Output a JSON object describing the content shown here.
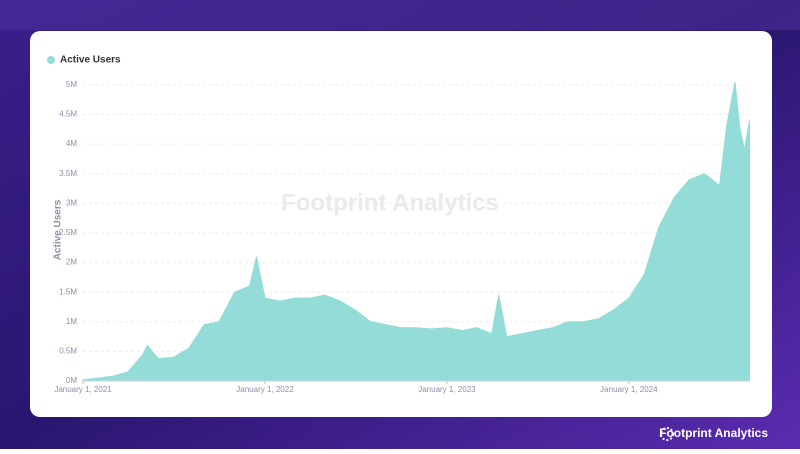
{
  "chart_data": {
    "type": "area",
    "watermark": "Footprint Analytics",
    "y_label": "Active Users",
    "x": [
      "2021-01-01",
      "2021-02-01",
      "2021-03-01",
      "2021-04-01",
      "2021-05-01",
      "2021-05-10",
      "2021-06-01",
      "2021-07-01",
      "2021-08-01",
      "2021-09-01",
      "2021-10-01",
      "2021-11-01",
      "2021-12-01",
      "2021-12-15",
      "2022-01-01",
      "2022-02-01",
      "2022-03-01",
      "2022-04-01",
      "2022-05-01",
      "2022-06-01",
      "2022-07-01",
      "2022-08-01",
      "2022-09-01",
      "2022-10-01",
      "2022-11-01",
      "2022-12-01",
      "2023-01-01",
      "2023-02-01",
      "2023-03-01",
      "2023-04-01",
      "2023-04-15",
      "2023-05-01",
      "2023-06-01",
      "2023-07-01",
      "2023-08-01",
      "2023-09-01",
      "2023-10-01",
      "2023-11-01",
      "2023-12-01",
      "2024-01-01",
      "2024-02-01",
      "2024-03-01",
      "2024-04-01",
      "2024-05-01",
      "2024-06-01",
      "2024-07-01",
      "2024-07-15",
      "2024-08-01",
      "2024-08-10",
      "2024-08-20",
      "2024-08-30"
    ],
    "series": [
      {
        "name": "Active Users",
        "color": "#93dcd8",
        "values": [
          20000,
          50000,
          80000,
          150000,
          450000,
          600000,
          380000,
          400000,
          550000,
          950000,
          1000000,
          1500000,
          1600000,
          2100000,
          1400000,
          1350000,
          1400000,
          1400000,
          1450000,
          1350000,
          1200000,
          1000000,
          950000,
          900000,
          900000,
          880000,
          900000,
          850000,
          900000,
          800000,
          1450000,
          750000,
          800000,
          850000,
          900000,
          1000000,
          1000000,
          1050000,
          1200000,
          1400000,
          1800000,
          2600000,
          3100000,
          3400000,
          3500000,
          3300000,
          4300000,
          5050000,
          4300000,
          3900000,
          4400000
        ]
      }
    ],
    "xlim": [
      "2021-01-01",
      "2024-08-31"
    ],
    "xticks": [
      {
        "value": "2021-01-01",
        "label": "January 1, 2021"
      },
      {
        "value": "2022-01-01",
        "label": "January 1, 2022"
      },
      {
        "value": "2023-01-01",
        "label": "January 1, 2023"
      },
      {
        "value": "2024-01-01",
        "label": "January 1, 2024"
      }
    ],
    "ylim": [
      0,
      5100000
    ],
    "yticks": [
      {
        "value": 0,
        "label": "0M"
      },
      {
        "value": 500000,
        "label": "0.5M"
      },
      {
        "value": 1000000,
        "label": "1M"
      },
      {
        "value": 1500000,
        "label": "1.5M"
      },
      {
        "value": 2000000,
        "label": "2M"
      },
      {
        "value": 2500000,
        "label": "2.5M"
      },
      {
        "value": 3000000,
        "label": "3M"
      },
      {
        "value": 3500000,
        "label": "3.5M"
      },
      {
        "value": 4000000,
        "label": "4M"
      },
      {
        "value": 4500000,
        "label": "4.5M"
      },
      {
        "value": 5000000,
        "label": "5M"
      }
    ],
    "grid": true
  },
  "footer": {
    "brand": "Footprint Analytics"
  }
}
